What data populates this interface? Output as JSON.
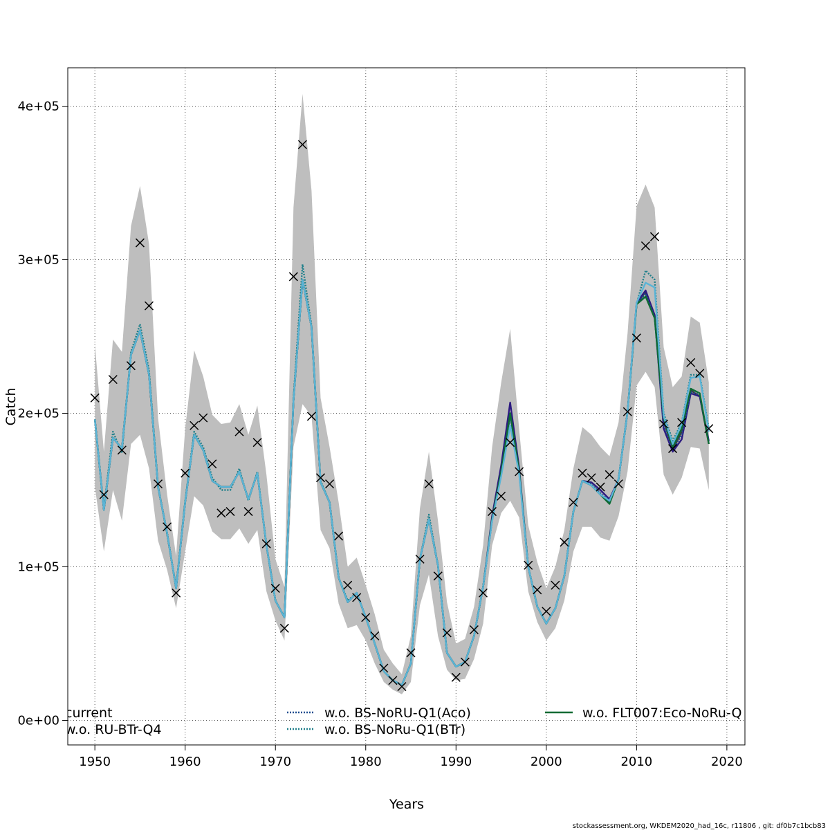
{
  "chart_data": {
    "type": "line",
    "xlabel": "Years",
    "ylabel": "Catch",
    "xlim": [
      1947,
      2022
    ],
    "ylim": [
      -16000,
      425000
    ],
    "xticks": [
      1950,
      1960,
      1970,
      1980,
      1990,
      2000,
      2010,
      2020
    ],
    "xtick_labels": [
      "1950",
      "1960",
      "1970",
      "1980",
      "1990",
      "2000",
      "2010",
      "2020"
    ],
    "yticks": [
      0,
      100000,
      200000,
      300000,
      400000
    ],
    "ytick_labels": [
      "0e+00",
      "1e+05",
      "2e+05",
      "3e+05",
      "4e+05"
    ],
    "grid": true,
    "legend_placement": "bottom",
    "years": [
      1950,
      1951,
      1952,
      1953,
      1954,
      1955,
      1956,
      1957,
      1958,
      1959,
      1960,
      1961,
      1962,
      1963,
      1964,
      1965,
      1966,
      1967,
      1968,
      1969,
      1970,
      1971,
      1972,
      1973,
      1974,
      1975,
      1976,
      1977,
      1978,
      1979,
      1980,
      1981,
      1982,
      1983,
      1984,
      1985,
      1986,
      1987,
      1988,
      1989,
      1990,
      1991,
      1992,
      1993,
      1994,
      1995,
      1996,
      1997,
      1998,
      1999,
      2000,
      2001,
      2002,
      2003,
      2004,
      2005,
      2006,
      2007,
      2008,
      2009,
      2010,
      2011,
      2012,
      2013,
      2014,
      2015,
      2016,
      2017,
      2018
    ],
    "observed": [
      210000,
      147000,
      222000,
      176000,
      231000,
      311000,
      270000,
      154000,
      126000,
      83000,
      161000,
      192000,
      197000,
      167000,
      135000,
      136000,
      188000,
      136000,
      181000,
      115000,
      86000,
      60000,
      289000,
      375000,
      198000,
      158000,
      154000,
      120000,
      88000,
      80000,
      67000,
      55000,
      34000,
      26000,
      22000,
      44000,
      105000,
      154000,
      94000,
      57000,
      28000,
      38000,
      59000,
      83000,
      136000,
      146000,
      181000,
      162000,
      101000,
      85000,
      71000,
      88000,
      116000,
      142000,
      161000,
      158000,
      152000,
      160000,
      154000,
      201000,
      249000,
      309000,
      315000,
      193000,
      177000,
      194000,
      233000,
      226000,
      190000
    ],
    "ci_upper": [
      245000,
      175000,
      248000,
      240000,
      322000,
      348000,
      310000,
      197000,
      147000,
      107000,
      190000,
      241000,
      224000,
      199000,
      193000,
      194000,
      206000,
      186000,
      205000,
      160000,
      105000,
      87000,
      334000,
      408000,
      345000,
      210000,
      178000,
      142000,
      100000,
      106000,
      88000,
      69000,
      46000,
      37000,
      30000,
      55000,
      138000,
      175000,
      130000,
      77000,
      50000,
      53000,
      74000,
      114000,
      178000,
      220000,
      255000,
      189000,
      127000,
      103000,
      86000,
      100000,
      124000,
      164000,
      191000,
      186000,
      178000,
      172000,
      194000,
      252000,
      335000,
      349000,
      334000,
      243000,
      217000,
      224000,
      263000,
      259000,
      220000
    ],
    "ci_lower": [
      152000,
      110000,
      150000,
      130000,
      180000,
      186000,
      164000,
      117000,
      98000,
      73000,
      110000,
      146000,
      140000,
      123000,
      118000,
      118000,
      125000,
      115000,
      124000,
      84000,
      65000,
      52000,
      178000,
      206000,
      198000,
      124000,
      112000,
      76000,
      60000,
      62000,
      52000,
      37000,
      25000,
      20000,
      17000,
      25000,
      75000,
      95000,
      55000,
      33000,
      26000,
      27000,
      40000,
      63000,
      114000,
      135000,
      143000,
      132000,
      84000,
      64000,
      52000,
      60000,
      78000,
      110000,
      126000,
      126000,
      119000,
      117000,
      133000,
      162000,
      218000,
      227000,
      217000,
      160000,
      147000,
      158000,
      178000,
      177000,
      150000
    ],
    "series": [
      {
        "name": "current",
        "color": "#3c3c3c",
        "dash": "solid",
        "values": [
          196000,
          137000,
          184000,
          177000,
          238000,
          254000,
          225000,
          152000,
          122000,
          86000,
          142000,
          186000,
          176000,
          156000,
          152000,
          152000,
          162000,
          144000,
          161000,
          114000,
          78000,
          67000,
          208000,
          287000,
          256000,
          155000,
          142000,
          93000,
          77000,
          83000,
          67000,
          50000,
          32000,
          26000,
          23000,
          37000,
          105000,
          131000,
          101000,
          44000,
          35000,
          38000,
          55000,
          87000,
          131000,
          162000,
          200000,
          162000,
          100000,
          74000,
          63000,
          73000,
          94000,
          136000,
          156000,
          153000,
          147000,
          142000,
          157000,
          201000,
          271000,
          279000,
          263000,
          195000,
          176000,
          188000,
          215000,
          211000,
          180000
        ]
      },
      {
        "name": "w.o. RU-BTr-Q4",
        "color": "#2c1a80",
        "dash": "solid",
        "values": [
          196000,
          137000,
          184000,
          177000,
          238000,
          254000,
          225000,
          152000,
          122000,
          86000,
          142000,
          186000,
          176000,
          156000,
          152000,
          152000,
          162000,
          144000,
          161000,
          114000,
          78000,
          67000,
          208000,
          287000,
          256000,
          155000,
          142000,
          93000,
          77000,
          83000,
          67000,
          50000,
          32000,
          26000,
          23000,
          37000,
          105000,
          131000,
          101000,
          44000,
          35000,
          38000,
          55000,
          87000,
          133000,
          166000,
          207000,
          164000,
          100000,
          74000,
          63000,
          73000,
          94000,
          136000,
          156000,
          155000,
          150000,
          144000,
          157000,
          201000,
          272000,
          280000,
          264000,
          190000,
          175000,
          183000,
          213000,
          211000,
          182000
        ]
      },
      {
        "name": "w.o. BS-NoRU-Q1(Aco)",
        "color": "#1d4e8f",
        "dash": "dotted",
        "values": [
          196000,
          137000,
          184000,
          177000,
          238000,
          254000,
          225000,
          152000,
          122000,
          86000,
          142000,
          186000,
          176000,
          156000,
          152000,
          152000,
          162000,
          144000,
          161000,
          114000,
          78000,
          67000,
          208000,
          287000,
          256000,
          155000,
          142000,
          93000,
          77000,
          83000,
          67000,
          50000,
          32000,
          26000,
          23000,
          37000,
          105000,
          131000,
          101000,
          44000,
          35000,
          38000,
          55000,
          87000,
          130000,
          160000,
          198000,
          161000,
          100000,
          74000,
          63000,
          73000,
          94000,
          136000,
          156000,
          154000,
          148000,
          143000,
          157000,
          201000,
          271000,
          278000,
          262000,
          193000,
          176000,
          186000,
          214000,
          212000,
          181000
        ]
      },
      {
        "name": "w.o. BS-NoRu-Q1(BTr)",
        "color": "#1f7f8a",
        "dash": "dotted",
        "values": [
          196000,
          138000,
          188000,
          174000,
          240000,
          258000,
          228000,
          153000,
          121000,
          87000,
          143000,
          188000,
          178000,
          158000,
          150000,
          150000,
          164000,
          143000,
          162000,
          114000,
          78000,
          67000,
          210000,
          297000,
          257000,
          156000,
          142000,
          93000,
          78000,
          83000,
          67000,
          50000,
          32000,
          26000,
          23000,
          37000,
          105000,
          134000,
          101000,
          44000,
          35000,
          38000,
          55000,
          87000,
          131000,
          162000,
          199000,
          162000,
          100000,
          74000,
          63000,
          73000,
          94000,
          136000,
          156000,
          153000,
          147000,
          142000,
          157000,
          201000,
          271000,
          293000,
          287000,
          200000,
          182000,
          194000,
          225000,
          225000,
          190000
        ]
      },
      {
        "name": "w.o. FLT007:Eco-NoRu-Q",
        "color": "#0d6b34",
        "dash": "solid",
        "values": [
          196000,
          137000,
          184000,
          177000,
          238000,
          254000,
          225000,
          152000,
          122000,
          86000,
          142000,
          186000,
          176000,
          156000,
          152000,
          152000,
          162000,
          144000,
          161000,
          114000,
          78000,
          67000,
          208000,
          287000,
          256000,
          155000,
          142000,
          93000,
          77000,
          83000,
          67000,
          50000,
          32000,
          26000,
          23000,
          37000,
          105000,
          131000,
          101000,
          44000,
          35000,
          38000,
          55000,
          87000,
          131000,
          162000,
          200000,
          162000,
          100000,
          74000,
          63000,
          73000,
          94000,
          136000,
          156000,
          153000,
          147000,
          141000,
          157000,
          201000,
          271000,
          276000,
          262000,
          197000,
          178000,
          190000,
          216000,
          213000,
          180000
        ]
      },
      {
        "name": "",
        "color": "#5ab4d6",
        "dash": "solid",
        "values": [
          196000,
          137000,
          184000,
          177000,
          238000,
          254000,
          225000,
          152000,
          122000,
          86000,
          142000,
          186000,
          176000,
          156000,
          152000,
          152000,
          162000,
          144000,
          161000,
          114000,
          78000,
          67000,
          208000,
          287000,
          256000,
          155000,
          142000,
          93000,
          77000,
          83000,
          67000,
          50000,
          32000,
          26000,
          23000,
          37000,
          105000,
          131000,
          101000,
          44000,
          35000,
          38000,
          55000,
          87000,
          130000,
          159000,
          192000,
          160000,
          100000,
          74000,
          63000,
          73000,
          94000,
          136000,
          156000,
          153000,
          147000,
          143000,
          157000,
          201000,
          272000,
          285000,
          282000,
          198000,
          180000,
          193000,
          223000,
          224000,
          188000
        ]
      }
    ]
  },
  "legend": {
    "items": [
      {
        "label": "current",
        "color": "#3c3c3c",
        "dash": "solid"
      },
      {
        "label": "w.o. RU-BTr-Q4",
        "color": "#2c1a80",
        "dash": "solid"
      },
      {
        "label": "w.o. BS-NoRU-Q1(Aco)",
        "color": "#1d4e8f",
        "dash": "dotted"
      },
      {
        "label": "w.o. BS-NoRu-Q1(BTr)",
        "color": "#1f7f8a",
        "dash": "dotted"
      },
      {
        "label": "w.o. FLT007:Eco-NoRu-Q",
        "color": "#0d6b34",
        "dash": "solid"
      }
    ]
  },
  "footer": "stockassessment.org, WKDEM2020_had_16c, r11806 , git: df0b7c1bcb83",
  "colors": {
    "ci_band": "#bebebe",
    "grid": "#555555",
    "marker": "#000000"
  }
}
